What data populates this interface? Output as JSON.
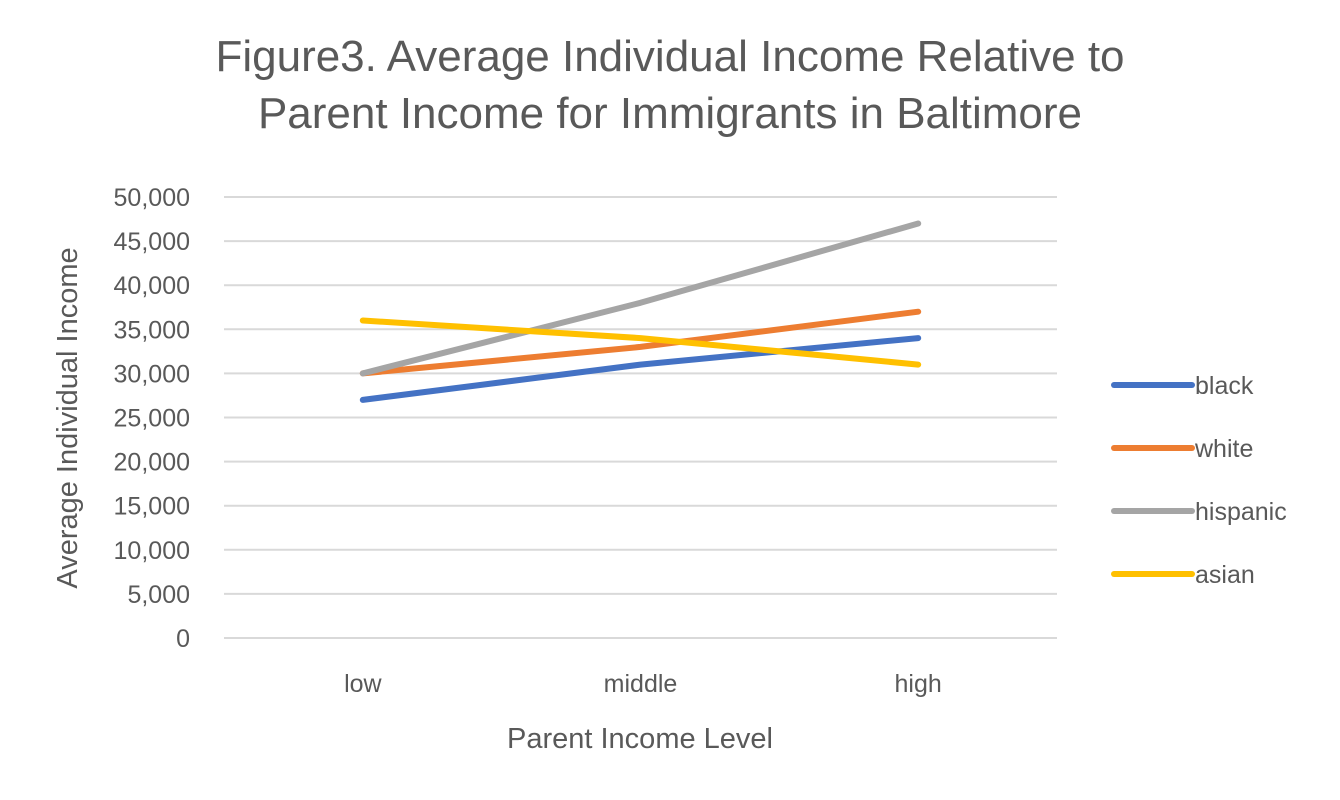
{
  "chart_data": {
    "type": "line",
    "title_line1": "Figure3. Average Individual Income Relative to",
    "title_line2": "Parent Income for Immigrants in Baltimore",
    "xlabel": "Parent Income Level",
    "ylabel": "Average Individual Income",
    "categories": [
      "low",
      "middle",
      "high"
    ],
    "ylim": [
      0,
      50000
    ],
    "yticks": [
      "0",
      "5,000",
      "10,000",
      "15,000",
      "20,000",
      "25,000",
      "30,000",
      "35,000",
      "40,000",
      "45,000",
      "50,000"
    ],
    "grid": true,
    "legend_position": "right",
    "series": [
      {
        "name": "black",
        "color": "#4472C4",
        "values": [
          27000,
          31000,
          34000
        ]
      },
      {
        "name": "white",
        "color": "#ED7D31",
        "values": [
          30000,
          33000,
          37000
        ]
      },
      {
        "name": "hispanic",
        "color": "#A5A5A5",
        "values": [
          30000,
          38000,
          47000
        ]
      },
      {
        "name": "asian",
        "color": "#FFC000",
        "values": [
          36000,
          34000,
          31000
        ]
      }
    ]
  }
}
